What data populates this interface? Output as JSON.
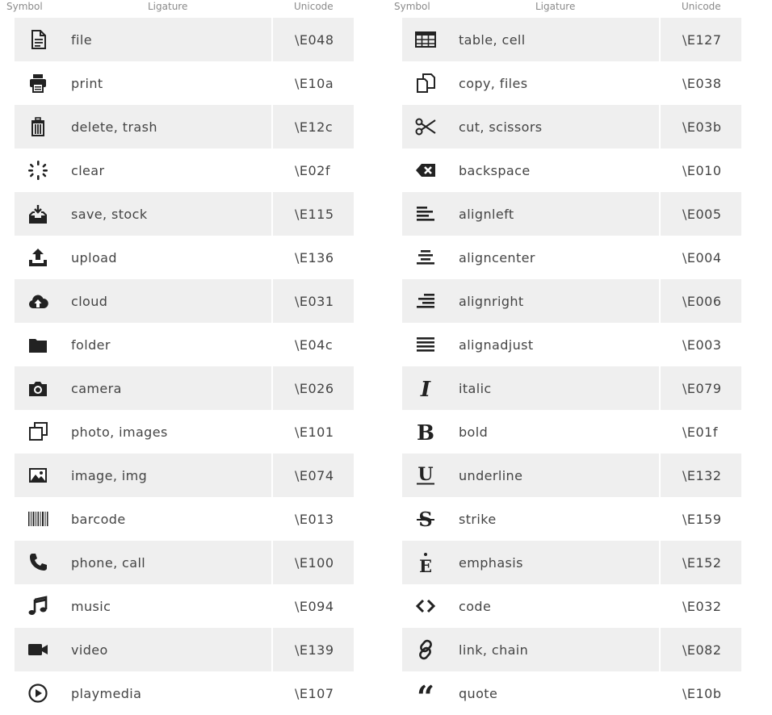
{
  "headers": {
    "symbol": "Symbol",
    "ligature": "Ligature",
    "unicode": "Unicode"
  },
  "left": [
    {
      "icon": "file-icon",
      "label": "file",
      "code": "\\E048"
    },
    {
      "icon": "print-icon",
      "label": "print",
      "code": "\\E10a"
    },
    {
      "icon": "trash-icon",
      "label": "delete, trash",
      "code": "\\E12c"
    },
    {
      "icon": "clear-spinner-icon",
      "label": "clear",
      "code": "\\E02f"
    },
    {
      "icon": "save-inbox-icon",
      "label": "save, stock",
      "code": "\\E115"
    },
    {
      "icon": "upload-icon",
      "label": "upload",
      "code": "\\E136"
    },
    {
      "icon": "cloud-upload-icon",
      "label": "cloud",
      "code": "\\E031"
    },
    {
      "icon": "folder-icon",
      "label": "folder",
      "code": "\\E04c"
    },
    {
      "icon": "camera-icon",
      "label": "camera",
      "code": "\\E026"
    },
    {
      "icon": "photos-icon",
      "label": "photo, images",
      "code": "\\E101"
    },
    {
      "icon": "image-icon",
      "label": "image, img",
      "code": "\\E074"
    },
    {
      "icon": "barcode-icon",
      "label": "barcode",
      "code": "\\E013"
    },
    {
      "icon": "phone-icon",
      "label": "phone, call",
      "code": "\\E100"
    },
    {
      "icon": "music-icon",
      "label": "music",
      "code": "\\E094"
    },
    {
      "icon": "video-icon",
      "label": "video",
      "code": "\\E139"
    },
    {
      "icon": "play-circle-icon",
      "label": "playmedia",
      "code": "\\E107"
    }
  ],
  "right": [
    {
      "icon": "table-icon",
      "label": "table, cell",
      "code": "\\E127"
    },
    {
      "icon": "copy-icon",
      "label": "copy, files",
      "code": "\\E038"
    },
    {
      "icon": "scissors-icon",
      "label": "cut, scissors",
      "code": "\\E03b"
    },
    {
      "icon": "backspace-icon",
      "label": "backspace",
      "code": "\\E010"
    },
    {
      "icon": "align-left-icon",
      "label": "alignleft",
      "code": "\\E005"
    },
    {
      "icon": "align-center-icon",
      "label": "aligncenter",
      "code": "\\E004"
    },
    {
      "icon": "align-right-icon",
      "label": "alignright",
      "code": "\\E006"
    },
    {
      "icon": "align-justify-icon",
      "label": "alignadjust",
      "code": "\\E003"
    },
    {
      "icon": "italic-icon",
      "label": "italic",
      "code": "\\E079"
    },
    {
      "icon": "bold-icon",
      "label": "bold",
      "code": "\\E01f"
    },
    {
      "icon": "underline-icon",
      "label": "underline",
      "code": "\\E132"
    },
    {
      "icon": "strike-icon",
      "label": "strike",
      "code": "\\E159"
    },
    {
      "icon": "emphasis-icon",
      "label": "emphasis",
      "code": "\\E152"
    },
    {
      "icon": "code-icon",
      "label": "code",
      "code": "\\E032"
    },
    {
      "icon": "link-icon",
      "label": "link, chain",
      "code": "\\E082"
    },
    {
      "icon": "quote-icon",
      "label": "quote",
      "code": "\\E10b"
    }
  ]
}
